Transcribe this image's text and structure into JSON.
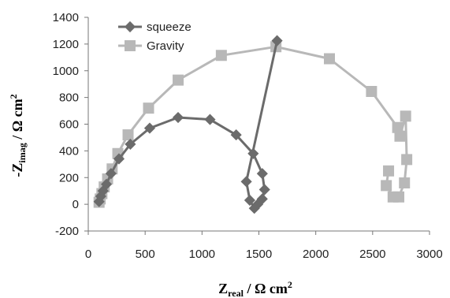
{
  "chart_data": {
    "type": "scatter",
    "x_ticks": [
      "0",
      "500",
      "1000",
      "1500",
      "2000",
      "2500",
      "3000"
    ],
    "y_ticks": [
      "-200",
      "0",
      "200",
      "400",
      "600",
      "800",
      "1000",
      "1200",
      "1400"
    ],
    "xlim": [
      0,
      3000
    ],
    "ylim": [
      -200,
      1400
    ],
    "xlabel": {
      "main": "Z",
      "sub": "real",
      "unit": " / Ω cm",
      "sup": "2"
    },
    "ylabel": {
      "main": "-Z",
      "sub": "imag",
      "unit": " / Ω cm",
      "sup": "2"
    },
    "grid": false,
    "legend_position": "top-left",
    "series": [
      {
        "name": "squeeze",
        "color": "#6b6b6b",
        "marker": "diamond",
        "points": [
          [
            95,
            20
          ],
          [
            110,
            60
          ],
          [
            130,
            100
          ],
          [
            160,
            150
          ],
          [
            200,
            230
          ],
          [
            270,
            340
          ],
          [
            370,
            450
          ],
          [
            540,
            570
          ],
          [
            790,
            650
          ],
          [
            1070,
            635
          ],
          [
            1300,
            520
          ],
          [
            1450,
            380
          ],
          [
            1530,
            230
          ],
          [
            1550,
            110
          ],
          [
            1530,
            40
          ],
          [
            1490,
            0
          ],
          [
            1460,
            -30
          ],
          [
            1420,
            30
          ],
          [
            1390,
            170
          ],
          [
            1660,
            1225
          ]
        ]
      },
      {
        "name": "Gravity",
        "color": "#b8b8b8",
        "marker": "square",
        "points": [
          [
            95,
            15
          ],
          [
            105,
            40
          ],
          [
            120,
            80
          ],
          [
            140,
            130
          ],
          [
            170,
            190
          ],
          [
            210,
            265
          ],
          [
            260,
            380
          ],
          [
            350,
            520
          ],
          [
            530,
            720
          ],
          [
            790,
            930
          ],
          [
            1170,
            1115
          ],
          [
            1650,
            1180
          ],
          [
            2120,
            1090
          ],
          [
            2490,
            845
          ],
          [
            2720,
            575
          ],
          [
            2740,
            510
          ],
          [
            2790,
            660
          ],
          [
            2800,
            335
          ],
          [
            2780,
            160
          ],
          [
            2730,
            55
          ],
          [
            2680,
            55
          ],
          [
            2620,
            140
          ],
          [
            2640,
            250
          ]
        ]
      }
    ]
  }
}
